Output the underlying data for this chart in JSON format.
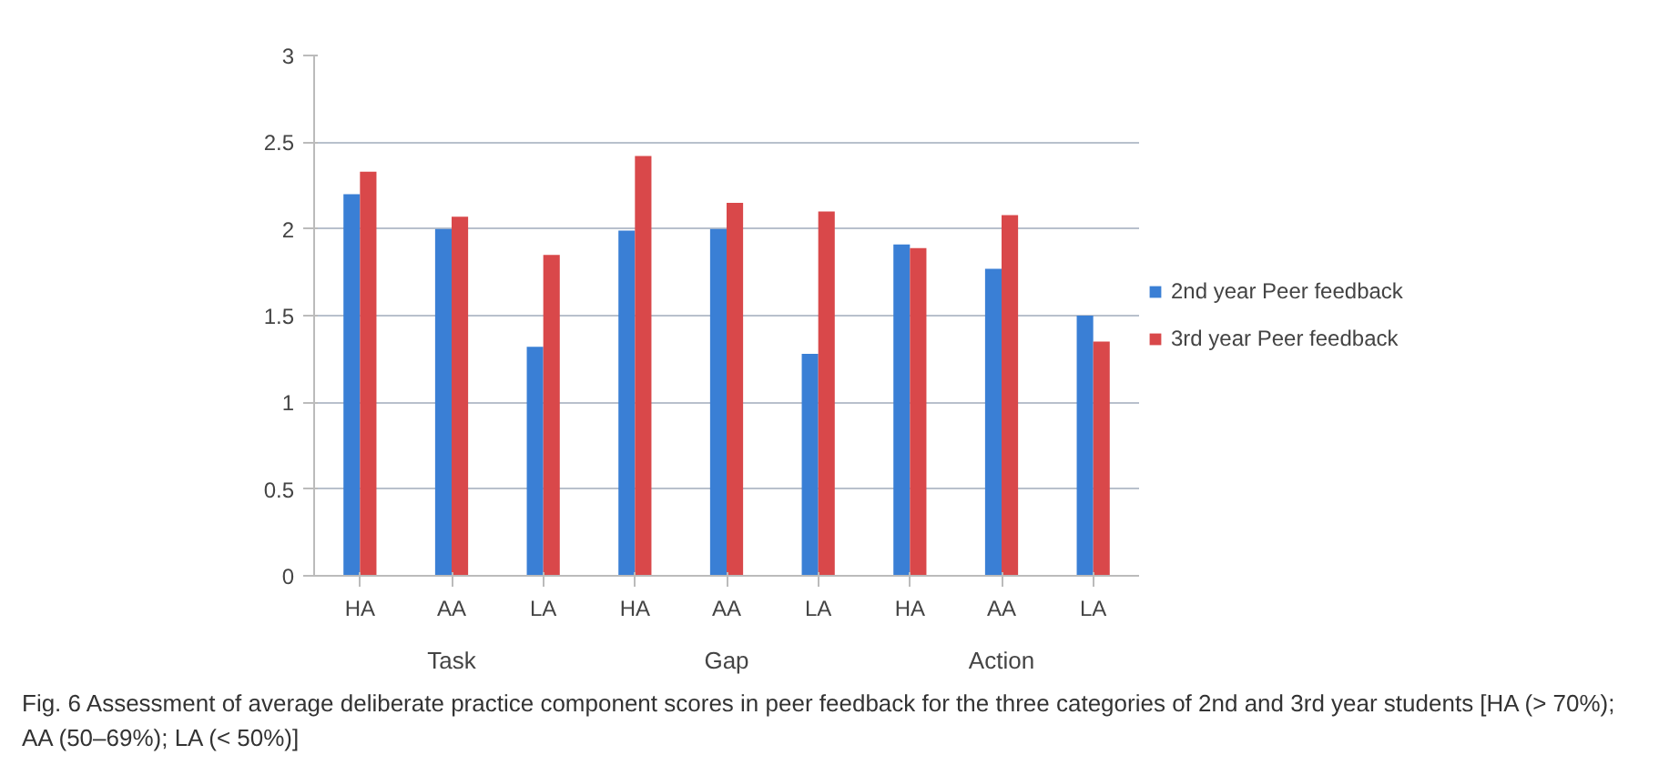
{
  "chart_data": {
    "type": "bar",
    "categories": [
      "HA",
      "AA",
      "LA",
      "HA",
      "AA",
      "LA",
      "HA",
      "AA",
      "LA"
    ],
    "series": [
      {
        "name": "2nd year Peer feedback",
        "color": "#3a7fd5",
        "values": [
          2.2,
          2.0,
          1.32,
          1.99,
          2.0,
          1.28,
          1.91,
          1.77,
          1.5
        ]
      },
      {
        "name": "3rd year Peer feedback",
        "color": "#d9484a",
        "values": [
          2.33,
          2.07,
          1.85,
          2.42,
          2.15,
          2.1,
          1.89,
          2.08,
          1.35
        ]
      }
    ],
    "ylim": [
      0,
      3
    ],
    "yticks": [
      0,
      0.5,
      1,
      1.5,
      2,
      2.5,
      3
    ],
    "grid": "y",
    "legend": "right",
    "annotations": [
      "Task",
      "Gap",
      "Action",
      "Fig. 6 Assessment of average deliberate practice component scores in peer feedback for the three categories of 2nd and 3rd year students [HA (> 70%); AA (50–69%); LA (< 50%)]"
    ]
  }
}
